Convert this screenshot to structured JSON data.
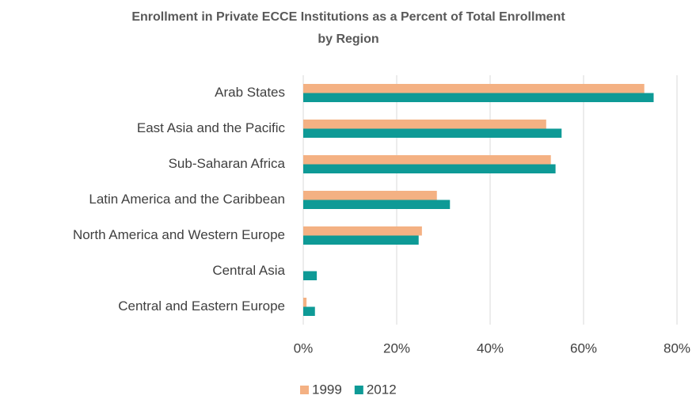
{
  "chart_data": {
    "type": "bar",
    "orientation": "horizontal",
    "title": [
      "Enrollment in Private ECCE Institutions as a Percent of Total Enrollment",
      "by Region"
    ],
    "categories": [
      "Arab States",
      "East Asia and the Pacific",
      "Sub-Saharan Africa",
      "Latin America and the Caribbean",
      "North America and Western Europe",
      "Central Asia",
      "Central and Eastern Europe"
    ],
    "series": [
      {
        "name": "1999",
        "color": "#f4b183",
        "values": [
          73,
          52,
          53,
          28.6,
          25.4,
          0,
          0.7
        ]
      },
      {
        "name": "2012",
        "color": "#0e9a96",
        "values": [
          75,
          55.3,
          54,
          31.4,
          24.7,
          2.9,
          2.5
        ]
      }
    ],
    "xlim": [
      0,
      80
    ],
    "xticks": [
      {
        "value": 0,
        "label": "0%"
      },
      {
        "value": 20,
        "label": "20%"
      },
      {
        "value": 40,
        "label": "40%"
      },
      {
        "value": 60,
        "label": "60%"
      },
      {
        "value": 80,
        "label": "80%"
      }
    ],
    "grid": true,
    "legend": "bottom"
  }
}
